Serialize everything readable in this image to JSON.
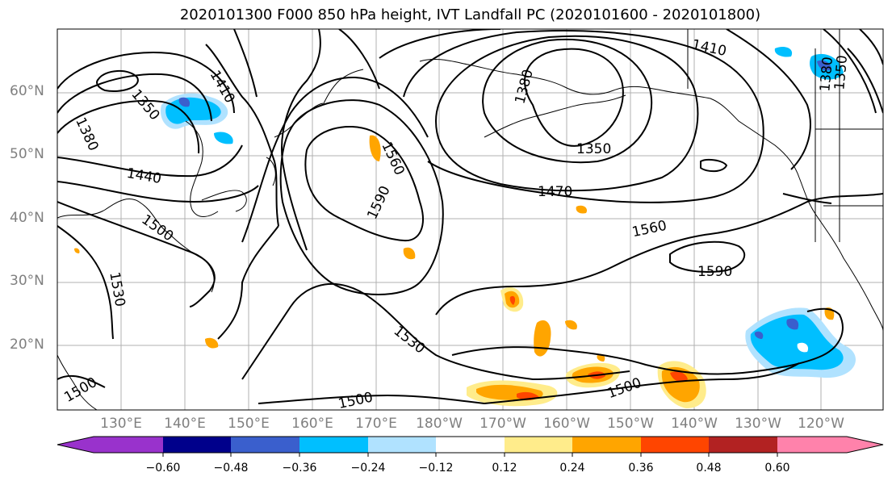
{
  "title": "2020101300 F000 850 hPa height, IVT Landfall PC (2020101600 - 2020101800)",
  "lat_labels": [
    "60°N",
    "50°N",
    "40°N",
    "30°N",
    "20°N"
  ],
  "lon_labels": [
    "130°E",
    "140°E",
    "150°E",
    "160°E",
    "170°E",
    "180°W",
    "170°W",
    "160°W",
    "150°W",
    "140°W",
    "130°W",
    "120°W"
  ],
  "contour_labels": [
    "1410",
    "1350",
    "1380",
    "1440",
    "1500",
    "1530",
    "1560",
    "1590",
    "1470",
    "1380",
    "1350",
    "1410",
    "1560",
    "1590",
    "1530",
    "1500",
    "1500",
    "1500",
    "1350",
    "1380"
  ],
  "colorbar": {
    "ticks": [
      "−0.60",
      "−0.48",
      "−0.36",
      "−0.24",
      "−0.12",
      "0.12",
      "0.24",
      "0.36",
      "0.48",
      "0.60"
    ],
    "colors": [
      "#9932cc",
      "#00008b",
      "#3a5fcd",
      "#00bfff",
      "#b0e2ff",
      "#ffffff",
      "#ffec8b",
      "#ffa500",
      "#ff4500",
      "#b22222",
      "#ff82ab",
      "#ff82ab"
    ]
  },
  "colors": {
    "grid": "#b0b0b0",
    "contour": "#000000",
    "coast": "#000000"
  }
}
